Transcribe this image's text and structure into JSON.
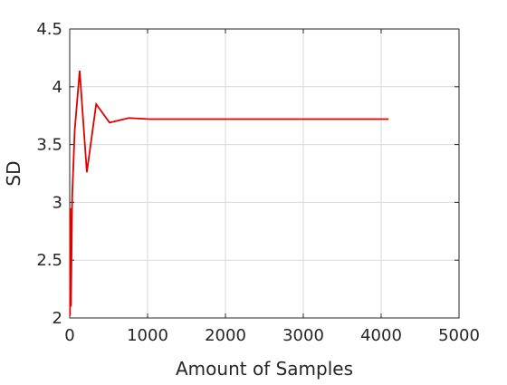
{
  "chart_data": {
    "type": "line",
    "title": "",
    "xlabel": "Amount of Samples",
    "ylabel": "SD",
    "xlim": [
      0,
      5000
    ],
    "ylim": [
      2,
      4.5
    ],
    "xticks": [
      0,
      1000,
      2000,
      3000,
      4000,
      5000
    ],
    "yticks": [
      2,
      2.5,
      3,
      3.5,
      4,
      4.5
    ],
    "xtick_labels": [
      "0",
      "1000",
      "2000",
      "3000",
      "4000",
      "5000"
    ],
    "ytick_labels": [
      "2",
      "2.5",
      "3",
      "3.5",
      "4",
      "4.5"
    ],
    "grid": true,
    "legend": "none",
    "series": [
      {
        "color": "#e00000",
        "x": [
          4,
          8,
          16,
          32,
          64,
          128,
          220,
          340,
          512,
          760,
          1024,
          2048,
          4096
        ],
        "y": [
          2.02,
          2.95,
          2.1,
          3.05,
          3.62,
          4.14,
          3.26,
          3.85,
          3.69,
          3.73,
          3.72,
          3.72,
          3.72
        ]
      }
    ]
  }
}
